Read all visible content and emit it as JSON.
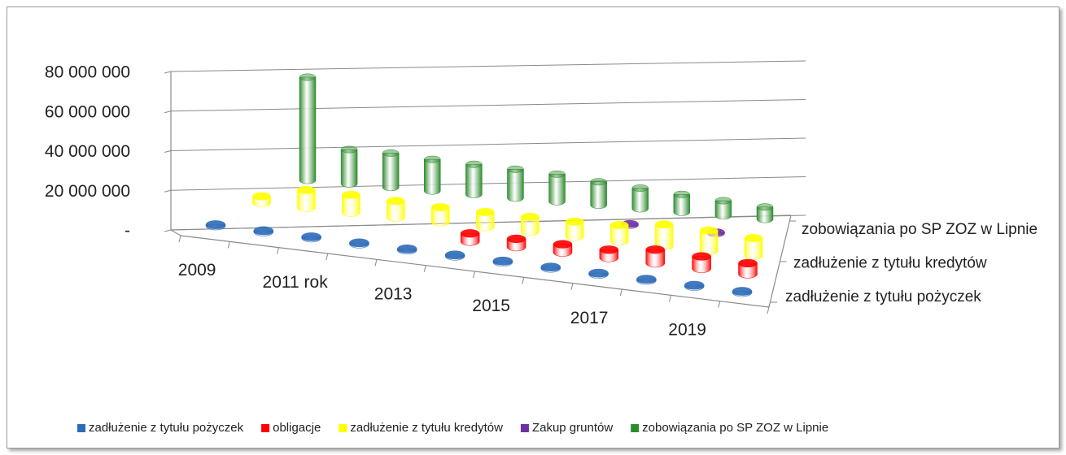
{
  "chart_data": {
    "type": "cylinder3d",
    "categories": [
      "2009",
      null,
      "2011 rok",
      null,
      "2013",
      null,
      "2015",
      null,
      "2017",
      null,
      "2019",
      null
    ],
    "series": [
      {
        "name": "zadłużenie z tytułu pożyczek",
        "color": "#2e6bb8",
        "values": [
          500000,
          500000,
          500000,
          500000,
          500000,
          500000,
          500000,
          500000,
          500000,
          500000,
          500000,
          500000
        ]
      },
      {
        "name": "obligacje",
        "color": "#ff0000",
        "values": [
          null,
          null,
          null,
          null,
          null,
          6000000,
          6000000,
          6000000,
          6000000,
          10000000,
          9000000,
          8000000
        ]
      },
      {
        "name": "zadłużenie z tytułu kredytów",
        "color": "#ffff00",
        "values": [
          5000000,
          13000000,
          13000000,
          12000000,
          11000000,
          11000000,
          11000000,
          11000000,
          12000000,
          16000000,
          15000000,
          13000000
        ]
      },
      {
        "name": "Zakup gruntów",
        "color": "#7030a0",
        "values": [
          null,
          null,
          null,
          null,
          null,
          null,
          null,
          null,
          500000,
          null,
          500000,
          null
        ]
      },
      {
        "name": "zobowiązania po SP ZOZ w Lipnie",
        "color": "#2e8b2e",
        "values": [
          75000000,
          25000000,
          25000000,
          23000000,
          22000000,
          21000000,
          20000000,
          17000000,
          15000000,
          13000000,
          11000000,
          9000000
        ]
      }
    ],
    "depth_labels_series": [
      4,
      2,
      0
    ],
    "ylim": [
      0,
      80000000
    ],
    "yticks": [
      {
        "value": 0,
        "label": "-"
      },
      {
        "value": 20000000,
        "label": "20 000 000"
      },
      {
        "value": 40000000,
        "label": "40 000 000"
      },
      {
        "value": 60000000,
        "label": "60 000 000"
      },
      {
        "value": 80000000,
        "label": "80 000 000"
      }
    ],
    "grid": true,
    "legend": "bottom"
  }
}
